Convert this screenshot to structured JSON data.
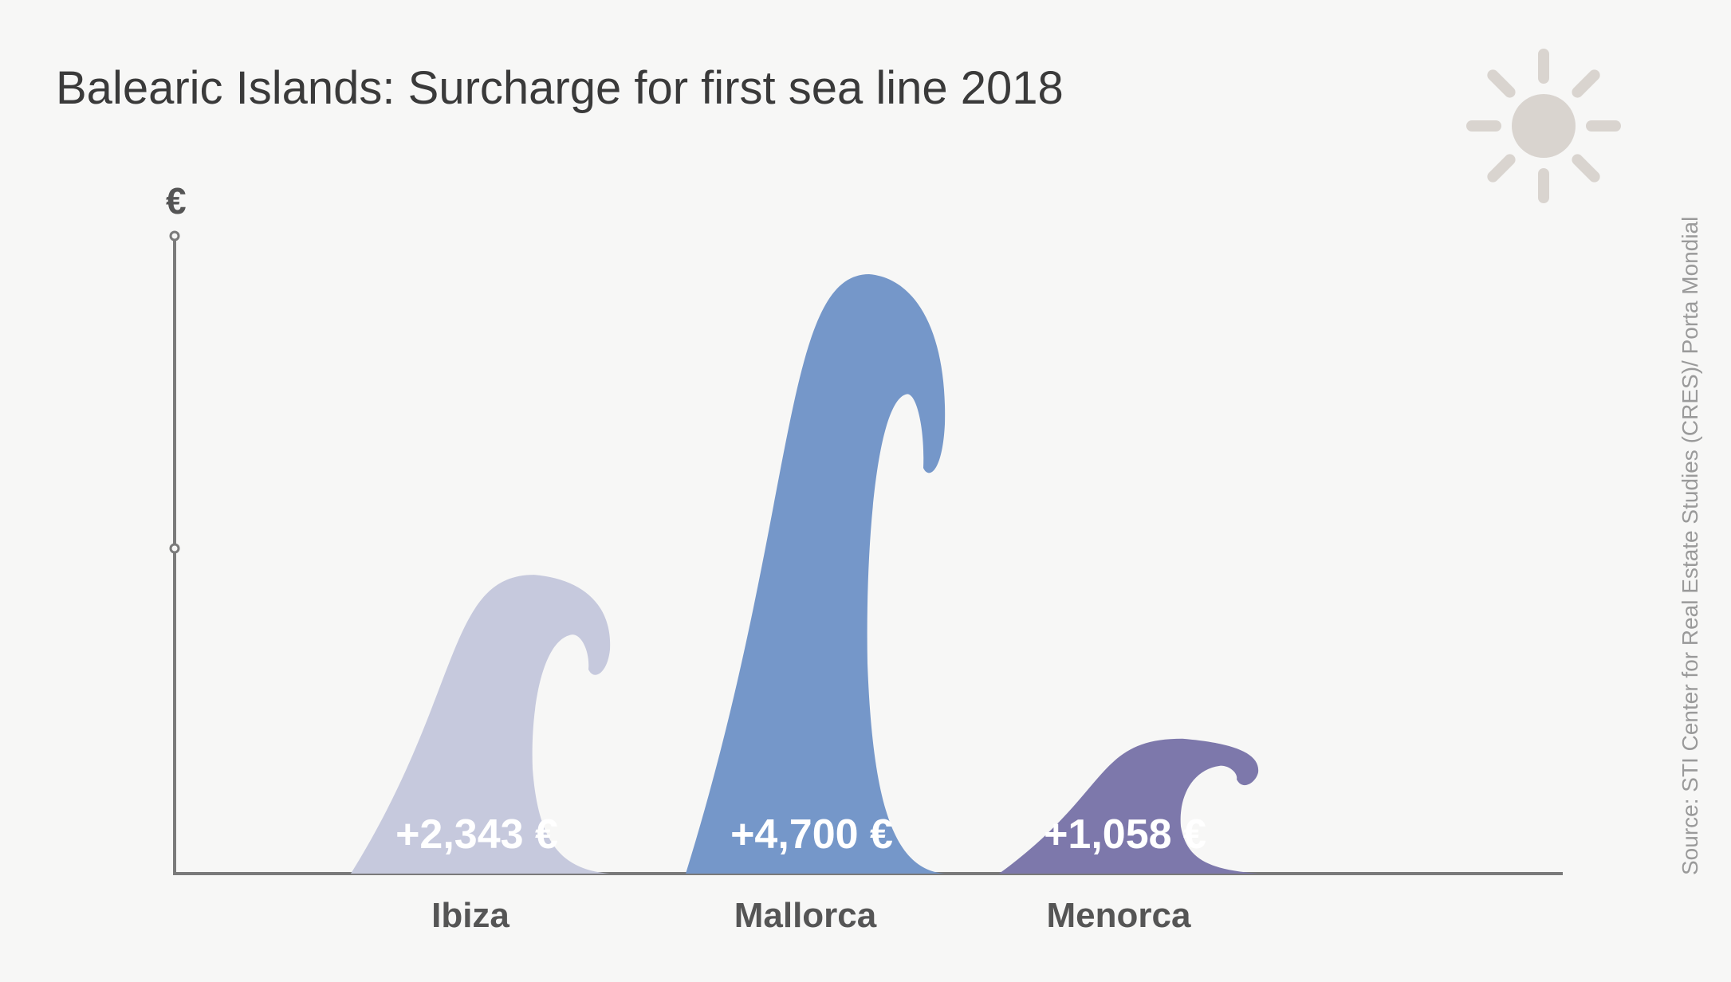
{
  "title": "Balearic Islands: Surcharge for first sea line 2018",
  "source": "Source: STI Center for Real Estate Studies (CRES)/ Porta Mondial",
  "colors": {
    "background": "#f7f7f6",
    "axis": "#7a7a7a",
    "sun": "#d9d4cf",
    "ibiza": "#c6c9dd",
    "mallorca": "#7597c9",
    "menorca": "#7d78ab"
  },
  "icons": [
    "sun-icon"
  ],
  "chart_data": {
    "type": "bar",
    "title": "Balearic Islands: Surcharge for first sea line 2018",
    "ylabel": "€",
    "xlabel": "",
    "ylim": [
      0,
      5000
    ],
    "grid": false,
    "legend": "none",
    "categories": [
      "Ibiza",
      "Mallorca",
      "Menorca"
    ],
    "values": [
      2343,
      4700,
      1058
    ],
    "value_labels": [
      "+2,343 €",
      "+4,700 €",
      "+1,058 €"
    ],
    "series_colors": [
      "#c6c9dd",
      "#7597c9",
      "#7d78ab"
    ],
    "mark_shape": "wave"
  }
}
